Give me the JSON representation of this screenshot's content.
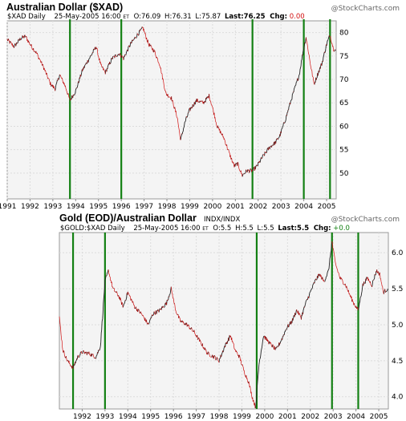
{
  "colors": {
    "vertical_lines": "#138013",
    "price_up": "#222222",
    "price_down": "#d21010",
    "chg_negative": "#d21010",
    "chg_positive": "#138013"
  },
  "watermark": "@StockCharts.com",
  "chart_data": [
    {
      "type": "line",
      "title": "Australian Dollar ($XAD)",
      "subtitle": {
        "symbol": "$XAD Daily",
        "date": "25-May-2005 16:00",
        "tz": "ET",
        "open": "O:76.09",
        "high": "H:76.31",
        "low": "L:75.87",
        "last": "Last:76.25",
        "chg_label": "Chg:",
        "chg_value": "0.00"
      },
      "xlim": [
        1991.0,
        2005.42
      ],
      "ylim": [
        44.5,
        82.5
      ],
      "y_ticks": [
        50,
        55,
        60,
        65,
        70,
        75,
        80
      ],
      "x_ticks": [
        {
          "label": "1991",
          "x": 1991.0
        },
        {
          "label": "1992",
          "x": 1992.0
        },
        {
          "label": "1993",
          "x": 1993.0
        },
        {
          "label": "1994",
          "x": 1994.0
        },
        {
          "label": "1995",
          "x": 1995.0
        },
        {
          "label": "1996",
          "x": 1996.0
        },
        {
          "label": "1997",
          "x": 1997.0
        },
        {
          "label": "1998",
          "x": 1998.0
        },
        {
          "label": "1999",
          "x": 1999.0
        },
        {
          "label": "2000",
          "x": 2000.0
        },
        {
          "label": "2001",
          "x": 2001.0
        },
        {
          "label": "2002",
          "x": 2002.0
        },
        {
          "label": "2003",
          "x": 2003.0
        },
        {
          "label": "2004",
          "x": 2004.0
        },
        {
          "label": "2005",
          "x": 2005.0
        }
      ],
      "vertical_markers": [
        1993.75,
        1996.0,
        2001.75,
        2004.0,
        2005.15
      ],
      "series": [
        {
          "points": [
            [
              1991.0,
              78.5
            ],
            [
              1991.3,
              77.0
            ],
            [
              1991.6,
              78.8
            ],
            [
              1991.8,
              79.2
            ],
            [
              1992.0,
              77.5
            ],
            [
              1992.3,
              75.5
            ],
            [
              1992.6,
              72.5
            ],
            [
              1992.9,
              69.0
            ],
            [
              1993.1,
              68.0
            ],
            [
              1993.3,
              71.0
            ],
            [
              1993.55,
              68.5
            ],
            [
              1993.75,
              65.5
            ],
            [
              1994.0,
              67.5
            ],
            [
              1994.3,
              72.0
            ],
            [
              1994.6,
              74.5
            ],
            [
              1994.9,
              77.0
            ],
            [
              1995.1,
              73.0
            ],
            [
              1995.3,
              71.5
            ],
            [
              1995.6,
              74.5
            ],
            [
              1995.9,
              75.5
            ],
            [
              1996.1,
              74.5
            ],
            [
              1996.4,
              77.5
            ],
            [
              1996.7,
              79.5
            ],
            [
              1996.95,
              81.0
            ],
            [
              1997.2,
              77.5
            ],
            [
              1997.45,
              76.0
            ],
            [
              1997.7,
              73.0
            ],
            [
              1997.95,
              67.0
            ],
            [
              1998.2,
              66.0
            ],
            [
              1998.45,
              62.0
            ],
            [
              1998.6,
              57.0
            ],
            [
              1998.8,
              61.0
            ],
            [
              1999.0,
              63.5
            ],
            [
              1999.3,
              65.5
            ],
            [
              1999.6,
              65.0
            ],
            [
              1999.85,
              66.5
            ],
            [
              2000.0,
              64.0
            ],
            [
              2000.2,
              60.0
            ],
            [
              2000.5,
              57.5
            ],
            [
              2000.75,
              54.0
            ],
            [
              2000.95,
              51.5
            ],
            [
              2001.1,
              52.0
            ],
            [
              2001.3,
              49.5
            ],
            [
              2001.5,
              50.5
            ],
            [
              2001.75,
              50.5
            ],
            [
              2001.95,
              51.5
            ],
            [
              2002.2,
              53.5
            ],
            [
              2002.5,
              55.5
            ],
            [
              2002.75,
              56.5
            ],
            [
              2002.95,
              58.0
            ],
            [
              2003.2,
              61.5
            ],
            [
              2003.5,
              66.5
            ],
            [
              2003.8,
              71.0
            ],
            [
              2003.95,
              75.5
            ],
            [
              2004.1,
              79.0
            ],
            [
              2004.3,
              73.0
            ],
            [
              2004.45,
              69.0
            ],
            [
              2004.6,
              71.0
            ],
            [
              2004.8,
              73.5
            ],
            [
              2005.0,
              77.5
            ],
            [
              2005.15,
              79.5
            ],
            [
              2005.3,
              76.5
            ],
            [
              2005.4,
              76.25
            ]
          ]
        }
      ]
    },
    {
      "type": "line",
      "title": "Gold (EOD)/Australian Dollar",
      "title_suffix": "INDX/INDX",
      "subtitle": {
        "symbol": "$GOLD:$XAD Daily",
        "date": "25-May-2005 16:00",
        "tz": "ET",
        "open": "O:5.5",
        "high": "H:5.5",
        "low": "L:5.5",
        "last": "Last:5.5",
        "chg_label": "Chg:",
        "chg_value": "+0.0"
      },
      "xlim": [
        1991.0,
        2005.42
      ],
      "ylim": [
        3.83,
        6.28
      ],
      "y_ticks": [
        4.0,
        4.5,
        5.0,
        5.5,
        6.0
      ],
      "y_tick_labels": [
        "4.0",
        "4.5",
        "5.0",
        "5.5",
        "6.0"
      ],
      "x_ticks": [
        {
          "label": "1992",
          "x": 1992.0
        },
        {
          "label": "1993",
          "x": 1993.0
        },
        {
          "label": "1994",
          "x": 1994.0
        },
        {
          "label": "1995",
          "x": 1995.0
        },
        {
          "label": "1996",
          "x": 1996.0
        },
        {
          "label": "1997",
          "x": 1997.0
        },
        {
          "label": "1998",
          "x": 1998.0
        },
        {
          "label": "1999",
          "x": 1999.0
        },
        {
          "label": "2000",
          "x": 2000.0
        },
        {
          "label": "2001",
          "x": 2001.0
        },
        {
          "label": "2002",
          "x": 2002.0
        },
        {
          "label": "2003",
          "x": 2003.0
        },
        {
          "label": "2004",
          "x": 2004.0
        },
        {
          "label": "2005",
          "x": 2005.0
        }
      ],
      "vertical_markers": [
        1991.6,
        1993.0,
        1999.65,
        2002.95,
        2004.1
      ],
      "series": [
        {
          "points": [
            [
              1991.0,
              5.1
            ],
            [
              1991.15,
              4.65
            ],
            [
              1991.35,
              4.5
            ],
            [
              1991.6,
              4.4
            ],
            [
              1991.8,
              4.55
            ],
            [
              1992.0,
              4.62
            ],
            [
              1992.3,
              4.6
            ],
            [
              1992.6,
              4.55
            ],
            [
              1992.8,
              4.7
            ],
            [
              1993.0,
              5.6
            ],
            [
              1993.15,
              5.75
            ],
            [
              1993.35,
              5.5
            ],
            [
              1993.6,
              5.4
            ],
            [
              1993.8,
              5.25
            ],
            [
              1994.0,
              5.45
            ],
            [
              1994.3,
              5.25
            ],
            [
              1994.6,
              5.15
            ],
            [
              1994.9,
              5.0
            ],
            [
              1995.1,
              5.15
            ],
            [
              1995.4,
              5.2
            ],
            [
              1995.7,
              5.3
            ],
            [
              1995.9,
              5.5
            ],
            [
              1996.1,
              5.2
            ],
            [
              1996.3,
              5.05
            ],
            [
              1996.6,
              5.0
            ],
            [
              1996.9,
              4.9
            ],
            [
              1997.2,
              4.75
            ],
            [
              1997.5,
              4.6
            ],
            [
              1997.8,
              4.55
            ],
            [
              1998.0,
              4.5
            ],
            [
              1998.25,
              4.7
            ],
            [
              1998.5,
              4.85
            ],
            [
              1998.7,
              4.65
            ],
            [
              1998.9,
              4.55
            ],
            [
              1999.1,
              4.35
            ],
            [
              1999.3,
              4.2
            ],
            [
              1999.45,
              4.0
            ],
            [
              1999.6,
              3.85
            ],
            [
              1999.75,
              4.45
            ],
            [
              1999.95,
              4.85
            ],
            [
              2000.2,
              4.75
            ],
            [
              2000.5,
              4.65
            ],
            [
              2000.75,
              4.8
            ],
            [
              2000.95,
              4.95
            ],
            [
              2001.2,
              5.05
            ],
            [
              2001.4,
              5.2
            ],
            [
              2001.6,
              5.1
            ],
            [
              2001.8,
              5.3
            ],
            [
              2002.0,
              5.45
            ],
            [
              2002.2,
              5.6
            ],
            [
              2002.4,
              5.7
            ],
            [
              2002.6,
              5.6
            ],
            [
              2002.8,
              5.75
            ],
            [
              2002.95,
              6.15
            ],
            [
              2003.1,
              5.85
            ],
            [
              2003.3,
              5.65
            ],
            [
              2003.55,
              5.55
            ],
            [
              2003.75,
              5.4
            ],
            [
              2003.9,
              5.3
            ],
            [
              2004.1,
              5.2
            ],
            [
              2004.3,
              5.55
            ],
            [
              2004.5,
              5.65
            ],
            [
              2004.7,
              5.55
            ],
            [
              2004.9,
              5.75
            ],
            [
              2005.05,
              5.7
            ],
            [
              2005.2,
              5.45
            ],
            [
              2005.4,
              5.5
            ]
          ]
        }
      ]
    }
  ]
}
